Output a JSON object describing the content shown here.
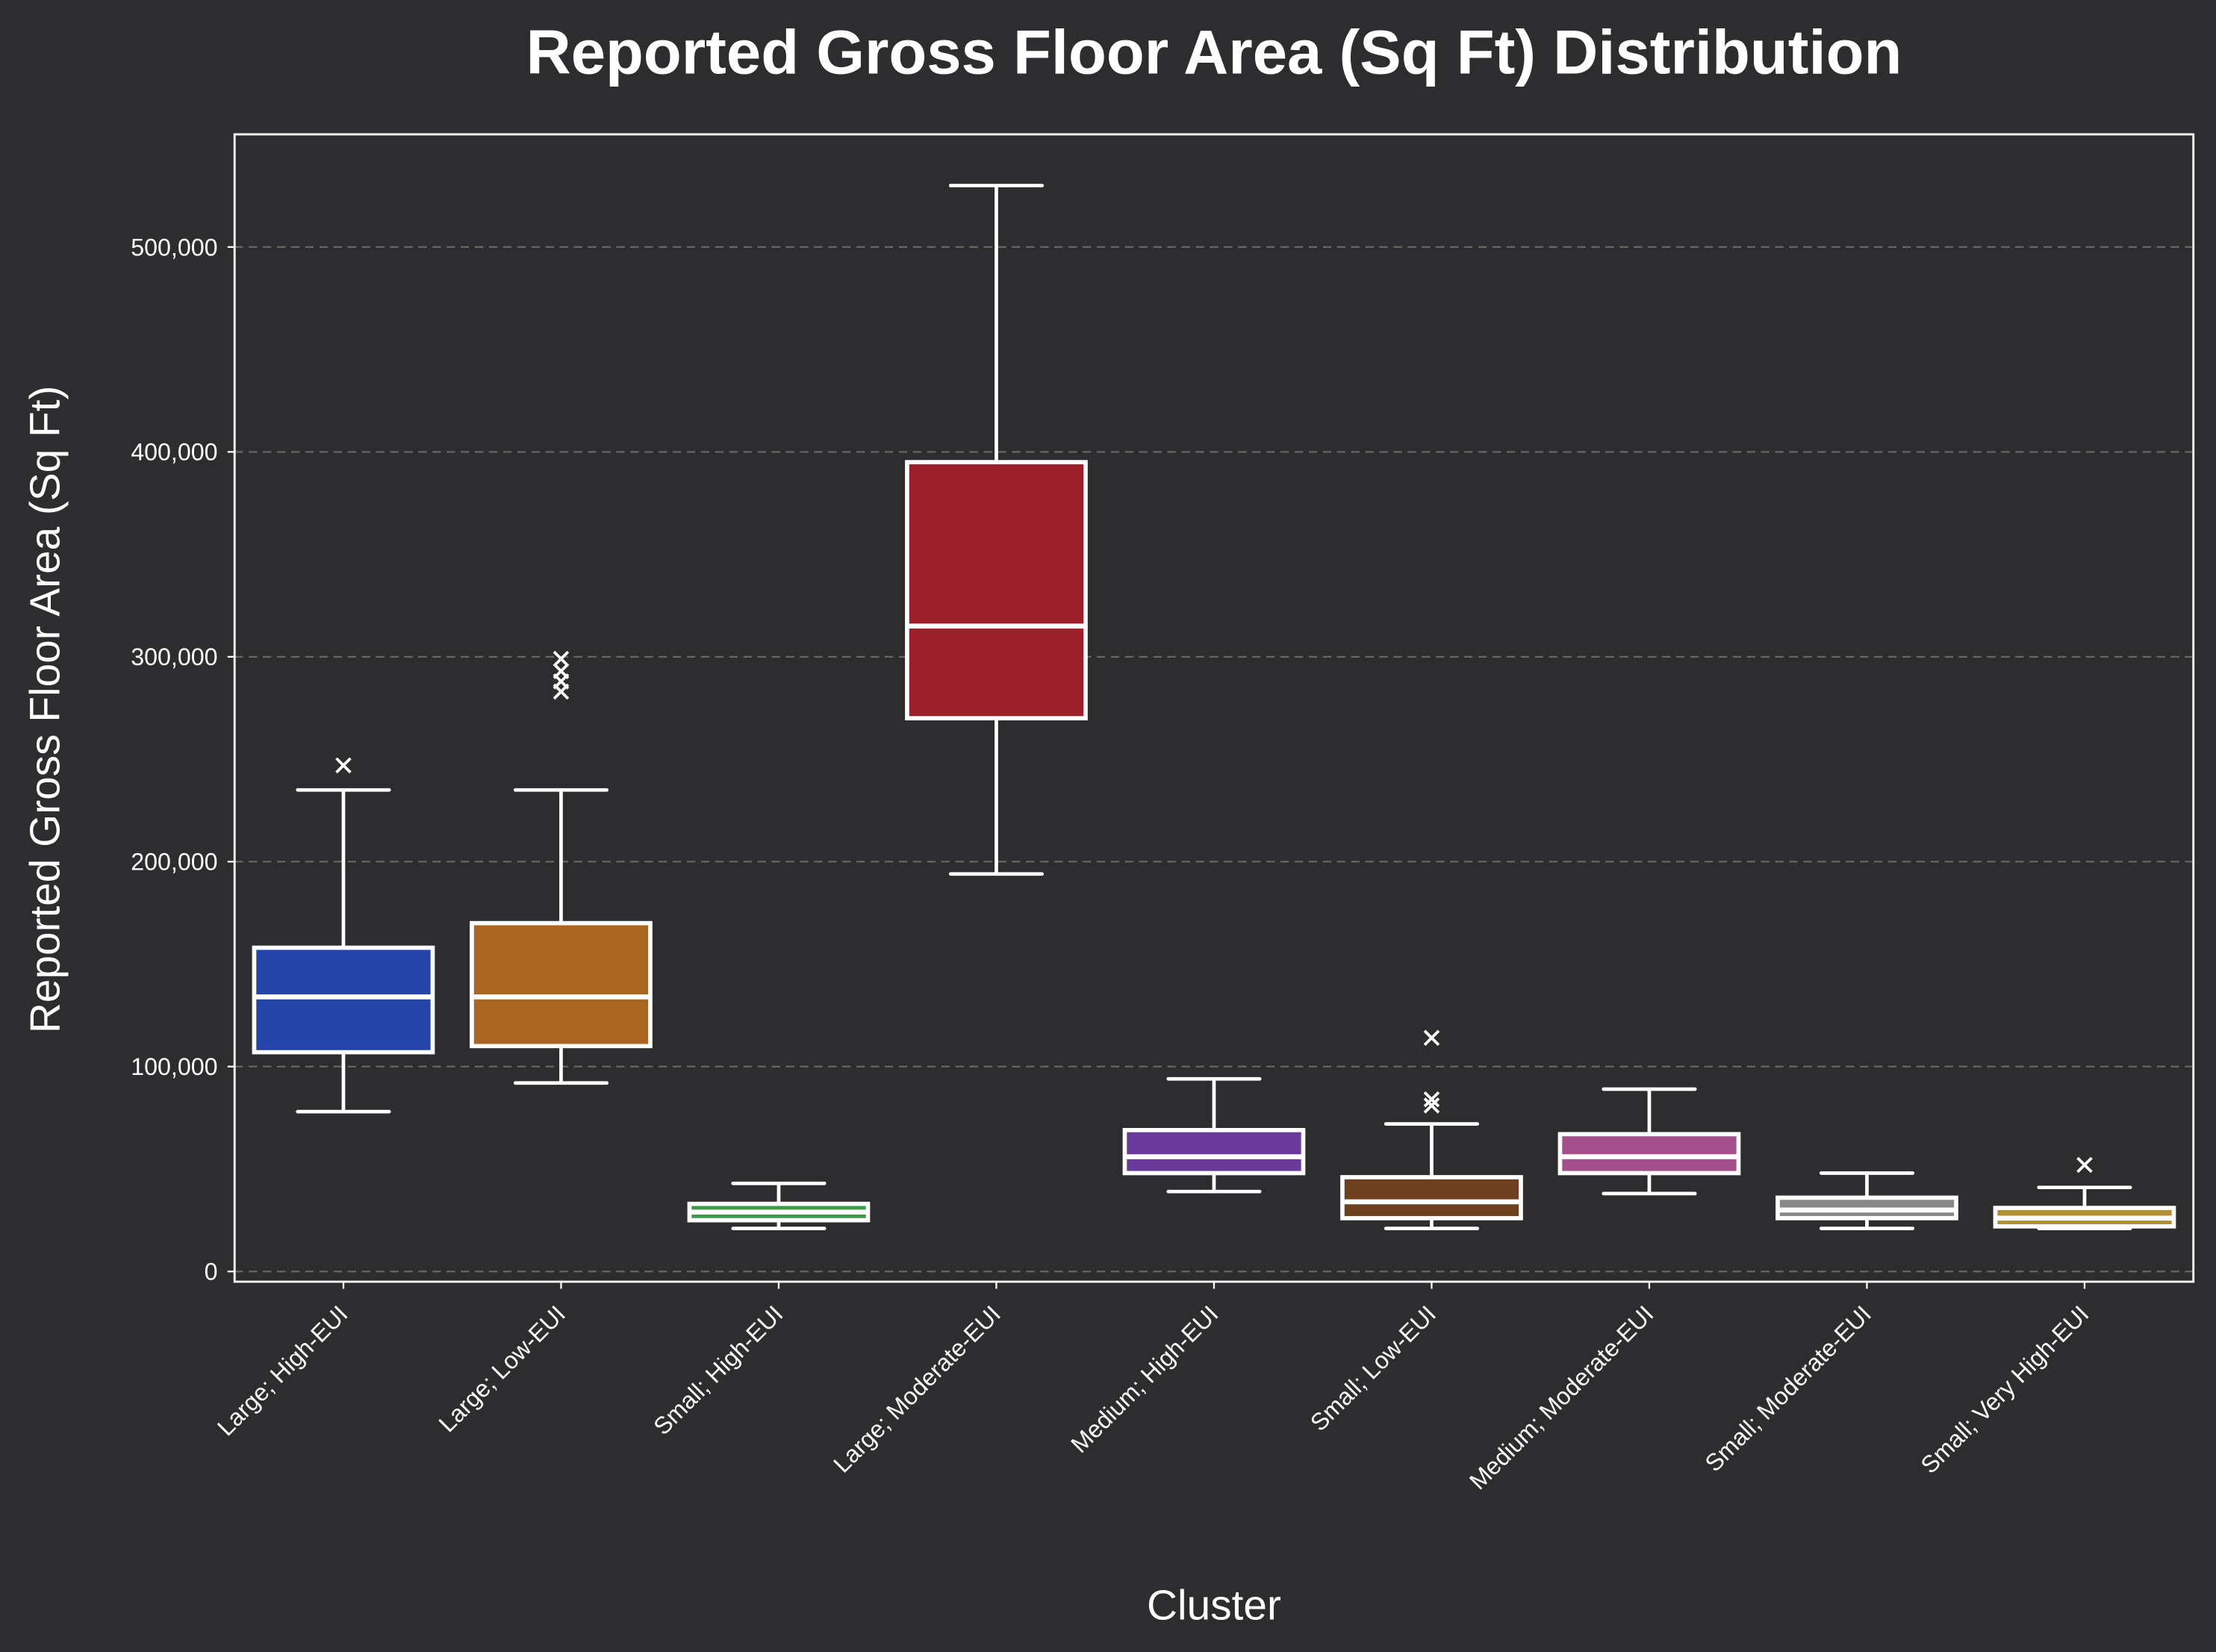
{
  "chart_data": {
    "type": "box",
    "title": "Reported Gross Floor Area (Sq Ft) Distribution",
    "xlabel": "Cluster",
    "ylabel": "Reported Gross Floor Area (Sq Ft)",
    "ylim": [
      -5000,
      555000
    ],
    "yticks": [
      0,
      100000,
      200000,
      300000,
      400000,
      500000
    ],
    "ytick_labels": [
      "0",
      "100,000",
      "200,000",
      "300,000",
      "400,000",
      "500,000"
    ],
    "grid": "y dashed",
    "background": "#2d2d2f",
    "categories": [
      "Large; High-EUI",
      "Large; Low-EUI",
      "Small; High-EUI",
      "Large; Moderate-EUI",
      "Medium; High-EUI",
      "Small; Low-EUI",
      "Medium; Moderate-EUI",
      "Small; Moderate-EUI",
      "Small; Very High-EUI"
    ],
    "boxes": [
      {
        "whislo": 78000,
        "q1": 107000,
        "med": 134000,
        "q3": 158000,
        "whishi": 235000,
        "fliers": [
          247000
        ],
        "color": "#2444aa"
      },
      {
        "whislo": 92000,
        "q1": 110000,
        "med": 134000,
        "q3": 170000,
        "whishi": 235000,
        "fliers": [
          283000,
          288000,
          293000,
          299000
        ],
        "color": "#a86622"
      },
      {
        "whislo": 21000,
        "q1": 25000,
        "med": 29000,
        "q3": 33000,
        "whishi": 43000,
        "fliers": [],
        "color": "#3a9a4a"
      },
      {
        "whislo": 194000,
        "q1": 270000,
        "med": 315000,
        "q3": 395000,
        "whishi": 530000,
        "fliers": [],
        "color": "#9b2029"
      },
      {
        "whislo": 39000,
        "q1": 48000,
        "med": 56000,
        "q3": 69000,
        "whishi": 94000,
        "fliers": [],
        "color": "#6a3a9a"
      },
      {
        "whislo": 21000,
        "q1": 26000,
        "med": 34000,
        "q3": 46000,
        "whishi": 72000,
        "fliers": [
          81000,
          84000,
          114000
        ],
        "color": "#6e4020"
      },
      {
        "whislo": 38000,
        "q1": 48000,
        "med": 56000,
        "q3": 67000,
        "whishi": 89000,
        "fliers": [],
        "color": "#a44f8a"
      },
      {
        "whislo": 21000,
        "q1": 26000,
        "med": 30000,
        "q3": 36000,
        "whishi": 48000,
        "fliers": [],
        "color": "#888888"
      },
      {
        "whislo": 21000,
        "q1": 22000,
        "med": 26000,
        "q3": 31000,
        "whishi": 41000,
        "fliers": [
          52000
        ],
        "color": "#b09030"
      }
    ]
  }
}
